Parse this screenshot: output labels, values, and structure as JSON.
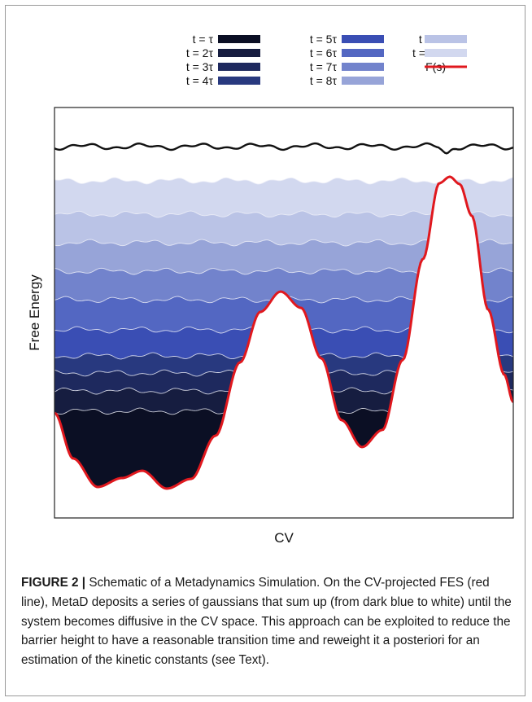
{
  "chart_data": {
    "type": "area",
    "xlabel": "CV",
    "ylabel": "Free Energy",
    "grid": false,
    "legend_position": "top",
    "series": [
      {
        "name": "t = τ",
        "color": "#0b0f24",
        "level": 1
      },
      {
        "name": "t = 2τ",
        "color": "#161d40",
        "level": 2
      },
      {
        "name": "t = 3τ",
        "color": "#1e295e",
        "level": 3
      },
      {
        "name": "t = 4τ",
        "color": "#28397f",
        "level": 4
      },
      {
        "name": "t = 5τ",
        "color": "#3a4eb4",
        "level": 5
      },
      {
        "name": "t = 6τ",
        "color": "#5367c2",
        "level": 6
      },
      {
        "name": "t = 7τ",
        "color": "#7283cc",
        "level": 7
      },
      {
        "name": "t = 8τ",
        "color": "#97a4d8",
        "level": 8
      },
      {
        "name": "t = 9τ",
        "color": "#bac3e6",
        "level": 9
      },
      {
        "name": "t = 10τ",
        "color": "#d2d8ef",
        "level": 10
      }
    ],
    "reference": {
      "name": "F(s)",
      "color": "#e0181e"
    },
    "diffusive_curve_color": "#111111"
  },
  "caption": {
    "label": "FIGURE 2 |",
    "text": " Schematic of a Metadynamics Simulation. On the CV-projected FES (red line), MetaD deposits a series of gaussians that sum up (from dark blue to white) until the system becomes diffusive in the CV space. This approach can be exploited to reduce the barrier height to have a reasonable transition time and reweight it a posteriori for an estimation of the kinetic constants (see Text)."
  }
}
